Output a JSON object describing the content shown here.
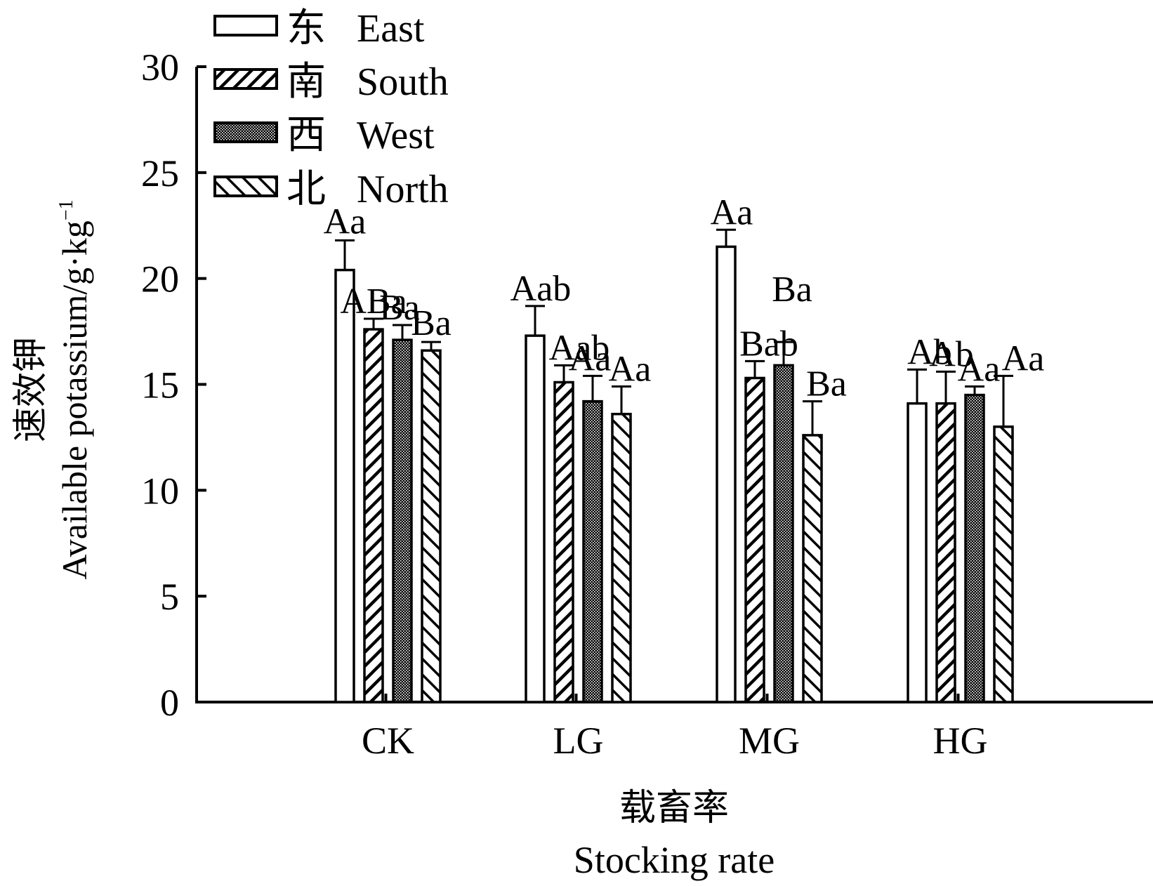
{
  "chart_data": {
    "type": "bar",
    "ylabel_cn": "速效钾",
    "ylabel_en": "Available potassium/g·kg",
    "ylabel_sup": "−1",
    "xlabel_cn": "载畜率",
    "xlabel_en": "Stocking rate",
    "categories": [
      "CK",
      "LG",
      "MG",
      "HG"
    ],
    "ylim": [
      0,
      30
    ],
    "yticks": [
      "0",
      "5",
      "10",
      "15",
      "20",
      "25",
      "30"
    ],
    "grid": false,
    "legend_position": "top-left",
    "series": [
      {
        "name_cn": "东",
        "name_en": "East",
        "pattern": "open",
        "values": [
          20.4,
          17.3,
          21.5,
          14.1
        ],
        "errors": [
          1.4,
          1.4,
          0.8,
          1.6
        ],
        "labels": [
          "Aa",
          "Aab",
          "Aa",
          "Ab"
        ]
      },
      {
        "name_cn": "南",
        "name_en": "South",
        "pattern": "hatch-forward",
        "values": [
          17.6,
          15.1,
          15.3,
          14.1
        ],
        "errors": [
          0.5,
          0.8,
          0.8,
          1.5
        ],
        "labels": [
          "ABa",
          "Aab",
          "Bab",
          "Ab"
        ]
      },
      {
        "name_cn": "西",
        "name_en": "West",
        "pattern": "dots-dense",
        "values": [
          17.1,
          14.2,
          15.9,
          14.5
        ],
        "errors": [
          0.7,
          1.2,
          1.1,
          0.4
        ],
        "labels": [
          "Ba",
          "Aa",
          "Ba",
          "Aa"
        ]
      },
      {
        "name_cn": "北",
        "name_en": "North",
        "pattern": "hatch-back",
        "values": [
          16.6,
          13.6,
          12.6,
          13.0
        ],
        "errors": [
          0.4,
          1.3,
          1.6,
          2.4
        ],
        "labels": [
          "Ba",
          "Aa",
          "Ba",
          "Aa"
        ]
      }
    ]
  }
}
